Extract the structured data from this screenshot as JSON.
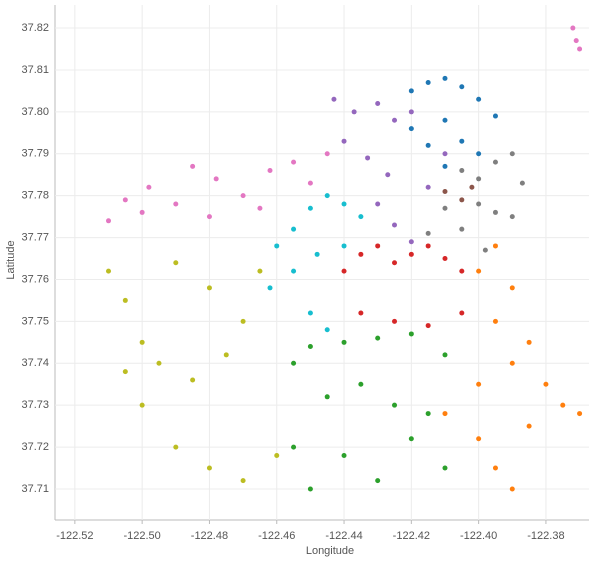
{
  "chart_data": {
    "type": "scatter",
    "x_label": "Longitude",
    "y_label": "Latitude",
    "xlim": [
      -122.5259,
      -122.3672
    ],
    "ylim": [
      37.7026,
      37.8255
    ],
    "grid": true,
    "xticks": [
      {
        "value": -122.52,
        "label": "-122.52"
      },
      {
        "value": -122.5,
        "label": "-122.50"
      },
      {
        "value": -122.48,
        "label": "-122.48"
      },
      {
        "value": -122.46,
        "label": "-122.46"
      },
      {
        "value": -122.44,
        "label": "-122.44"
      },
      {
        "value": -122.42,
        "label": "-122.42"
      },
      {
        "value": -122.4,
        "label": "-122.40"
      },
      {
        "value": -122.38,
        "label": "-122.38"
      }
    ],
    "yticks": [
      37.71,
      37.72,
      37.73,
      37.74,
      37.75,
      37.76,
      37.77,
      37.78,
      37.79,
      {
        "value": 37.8,
        "label": "37.80"
      },
      37.81,
      37.82
    ],
    "series": [
      {
        "color": "#1f77b4",
        "x": [
          -122.42,
          -122.415,
          -122.41,
          -122.405,
          -122.4,
          -122.395,
          -122.41,
          -122.405,
          -122.415,
          -122.4,
          -122.42,
          -122.41
        ],
        "values": [
          37.805,
          37.807,
          37.808,
          37.806,
          37.803,
          37.799,
          37.798,
          37.793,
          37.792,
          37.79,
          37.796,
          37.787
        ]
      },
      {
        "color": "#9467bd",
        "x": [
          -122.443,
          -122.437,
          -122.43,
          -122.425,
          -122.42,
          -122.44,
          -122.433,
          -122.427,
          -122.43,
          -122.425,
          -122.415,
          -122.41,
          -122.42
        ],
        "values": [
          37.803,
          37.8,
          37.802,
          37.798,
          37.8,
          37.793,
          37.789,
          37.785,
          37.778,
          37.773,
          37.782,
          37.79,
          37.769
        ]
      },
      {
        "color": "#8c564b",
        "x": [
          -122.41,
          -122.405,
          -122.402
        ],
        "values": [
          37.781,
          37.779,
          37.782
        ]
      },
      {
        "color": "#7f7f7f",
        "x": [
          -122.405,
          -122.4,
          -122.395,
          -122.39,
          -122.387,
          -122.41,
          -122.4,
          -122.395,
          -122.39,
          -122.415,
          -122.405,
          -122.398
        ],
        "values": [
          37.786,
          37.784,
          37.788,
          37.79,
          37.783,
          37.777,
          37.778,
          37.776,
          37.775,
          37.771,
          37.772,
          37.767
        ]
      },
      {
        "color": "#e377c2",
        "x": [
          -122.51,
          -122.505,
          -122.498,
          -122.49,
          -122.485,
          -122.478,
          -122.47,
          -122.462,
          -122.455,
          -122.45,
          -122.445,
          -122.5,
          -122.48,
          -122.465,
          -122.372,
          -122.371,
          -122.37
        ],
        "values": [
          37.774,
          37.779,
          37.782,
          37.778,
          37.787,
          37.784,
          37.78,
          37.786,
          37.788,
          37.783,
          37.79,
          37.776,
          37.775,
          37.777,
          37.82,
          37.817,
          37.815
        ]
      },
      {
        "color": "#17becf",
        "x": [
          -122.46,
          -122.455,
          -122.45,
          -122.445,
          -122.44,
          -122.435,
          -122.462,
          -122.455,
          -122.448,
          -122.44,
          -122.45,
          -122.445
        ],
        "values": [
          37.768,
          37.772,
          37.777,
          37.78,
          37.778,
          37.775,
          37.758,
          37.762,
          37.766,
          37.768,
          37.752,
          37.748
        ]
      },
      {
        "color": "#d62728",
        "x": [
          -122.44,
          -122.435,
          -122.43,
          -122.425,
          -122.42,
          -122.415,
          -122.41,
          -122.405,
          -122.435,
          -122.425,
          -122.415,
          -122.405
        ],
        "values": [
          37.762,
          37.766,
          37.768,
          37.764,
          37.766,
          37.768,
          37.765,
          37.762,
          37.752,
          37.75,
          37.749,
          37.752
        ]
      },
      {
        "color": "#ff7f0e",
        "x": [
          -122.4,
          -122.395,
          -122.39,
          -122.385,
          -122.38,
          -122.375,
          -122.37,
          -122.41,
          -122.4,
          -122.395,
          -122.39,
          -122.385,
          -122.395,
          -122.39,
          -122.4
        ],
        "values": [
          37.762,
          37.768,
          37.758,
          37.745,
          37.735,
          37.73,
          37.728,
          37.728,
          37.722,
          37.715,
          37.74,
          37.725,
          37.75,
          37.71,
          37.735
        ]
      },
      {
        "color": "#bcbd22",
        "x": [
          -122.51,
          -122.505,
          -122.5,
          -122.49,
          -122.48,
          -122.47,
          -122.465,
          -122.505,
          -122.495,
          -122.485,
          -122.475,
          -122.49,
          -122.48,
          -122.47,
          -122.46,
          -122.5
        ],
        "values": [
          37.762,
          37.755,
          37.745,
          37.764,
          37.758,
          37.75,
          37.762,
          37.738,
          37.74,
          37.736,
          37.742,
          37.72,
          37.715,
          37.712,
          37.718,
          37.73
        ]
      },
      {
        "color": "#2ca02c",
        "x": [
          -122.455,
          -122.45,
          -122.44,
          -122.43,
          -122.42,
          -122.41,
          -122.445,
          -122.435,
          -122.425,
          -122.415,
          -122.455,
          -122.44,
          -122.43,
          -122.42,
          -122.41,
          -122.45
        ],
        "values": [
          37.74,
          37.744,
          37.745,
          37.746,
          37.747,
          37.742,
          37.732,
          37.735,
          37.73,
          37.728,
          37.72,
          37.718,
          37.712,
          37.722,
          37.715,
          37.71
        ]
      }
    ]
  }
}
